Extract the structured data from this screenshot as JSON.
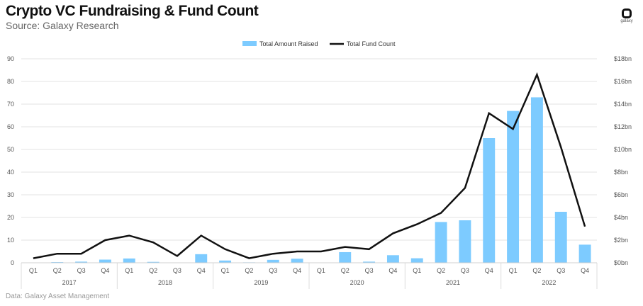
{
  "header": {
    "title": "Crypto VC Fundraising & Fund Count",
    "subtitle": "Source: Galaxy Research",
    "logo_text": "galaxy"
  },
  "footer": {
    "note": "Data: Galaxy Asset Management"
  },
  "colors": {
    "bar": "#7dcbff",
    "line": "#111111",
    "grid": "#e3e3e3"
  },
  "chart_data": {
    "type": "bar",
    "title": "Crypto VC Fundraising & Fund Count",
    "categories": [
      "Q1",
      "Q2",
      "Q3",
      "Q4",
      "Q1",
      "Q2",
      "Q3",
      "Q4",
      "Q1",
      "Q2",
      "Q3",
      "Q4",
      "Q1",
      "Q2",
      "Q3",
      "Q4",
      "Q1",
      "Q2",
      "Q3",
      "Q4",
      "Q1",
      "Q2",
      "Q3",
      "Q4"
    ],
    "groups": [
      "2017",
      "2018",
      "2019",
      "2020",
      "2021",
      "2022"
    ],
    "series": [
      {
        "name": "Total Amount Raised",
        "type": "bar",
        "axis": "right",
        "unit": "bn USD",
        "values": [
          0,
          0.06,
          0.1,
          0.28,
          0.38,
          0.08,
          0,
          0.76,
          0.2,
          0.04,
          0.26,
          0.36,
          0,
          0.94,
          0.1,
          0.67,
          0.4,
          3.6,
          3.75,
          11,
          13.4,
          14.6,
          4.5,
          1.6
        ]
      },
      {
        "name": "Total Fund Count",
        "type": "line",
        "axis": "left",
        "values": [
          2,
          4,
          4,
          10,
          12,
          9,
          3,
          12,
          6,
          2,
          4,
          5,
          5,
          7,
          6,
          13,
          17,
          22,
          33,
          66,
          59,
          83,
          51,
          16
        ]
      }
    ],
    "left_axis": {
      "ylim": [
        0,
        90
      ],
      "ticks": [
        "0",
        "10",
        "20",
        "30",
        "40",
        "50",
        "60",
        "70",
        "80",
        "90"
      ]
    },
    "right_axis": {
      "ylim": [
        0,
        18
      ],
      "ticks": [
        "$0bn",
        "$2bn",
        "$4bn",
        "$6bn",
        "$8bn",
        "$10bn",
        "$12bn",
        "$14bn",
        "$16bn",
        "$18bn"
      ]
    },
    "legend": "top-center",
    "grid": true
  }
}
